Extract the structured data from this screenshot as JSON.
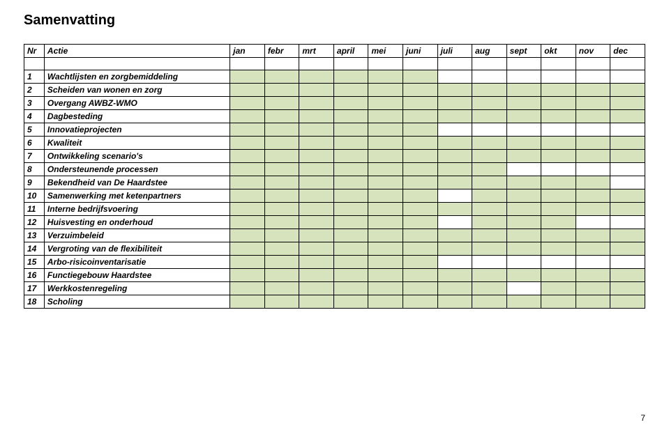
{
  "title": "Samenvatting",
  "page_number": "7",
  "colors": {
    "fill": "#d6e3bc",
    "empty": "#ffffff",
    "border": "#000000"
  },
  "columns": {
    "nr": "Nr",
    "actie": "Actie",
    "months": [
      "jan",
      "febr",
      "mrt",
      "april",
      "mei",
      "juni",
      "juli",
      "aug",
      "sept",
      "okt",
      "nov",
      "dec"
    ]
  },
  "rows": [
    {
      "nr": "1",
      "actie": "Wachtlijsten en zorgbemiddeling",
      "fill": [
        1,
        1,
        1,
        1,
        1,
        1,
        0,
        0,
        0,
        0,
        0,
        0
      ]
    },
    {
      "nr": "2",
      "actie": "Scheiden van wonen en zorg",
      "fill": [
        1,
        1,
        1,
        1,
        1,
        1,
        1,
        1,
        1,
        1,
        1,
        1
      ]
    },
    {
      "nr": "3",
      "actie": "Overgang AWBZ-WMO",
      "fill": [
        1,
        1,
        1,
        1,
        1,
        1,
        1,
        1,
        1,
        1,
        1,
        1
      ]
    },
    {
      "nr": "4",
      "actie": "Dagbesteding",
      "fill": [
        1,
        1,
        1,
        1,
        1,
        1,
        1,
        1,
        1,
        1,
        1,
        1
      ]
    },
    {
      "nr": "5",
      "actie": "Innovatieprojecten",
      "fill": [
        1,
        1,
        1,
        1,
        1,
        1,
        0,
        0,
        0,
        0,
        0,
        0
      ]
    },
    {
      "nr": "6",
      "actie": "Kwaliteit",
      "fill": [
        1,
        1,
        1,
        1,
        1,
        1,
        1,
        1,
        1,
        1,
        1,
        1
      ]
    },
    {
      "nr": "7",
      "actie": "Ontwikkeling scenario's",
      "fill": [
        1,
        1,
        1,
        1,
        1,
        1,
        1,
        1,
        1,
        1,
        1,
        1
      ]
    },
    {
      "nr": "8",
      "actie": "Ondersteunende processen",
      "fill": [
        1,
        1,
        1,
        1,
        1,
        1,
        1,
        1,
        0,
        0,
        0,
        0
      ]
    },
    {
      "nr": "9",
      "actie": "Bekendheid van De Haardstee",
      "fill": [
        1,
        1,
        1,
        1,
        1,
        1,
        1,
        1,
        1,
        1,
        1,
        0
      ]
    },
    {
      "nr": "10",
      "actie": "Samenwerking met ketenpartners",
      "fill": [
        1,
        1,
        1,
        1,
        1,
        1,
        0,
        1,
        1,
        1,
        1,
        1
      ]
    },
    {
      "nr": "11",
      "actie": "Interne bedrijfsvoering",
      "fill": [
        1,
        1,
        1,
        1,
        1,
        1,
        1,
        1,
        1,
        1,
        1,
        1
      ]
    },
    {
      "nr": "12",
      "actie": "Huisvesting en onderhoud",
      "fill": [
        1,
        1,
        1,
        1,
        1,
        1,
        0,
        1,
        1,
        1,
        0,
        0
      ]
    },
    {
      "nr": "13",
      "actie": "Verzuimbeleid",
      "fill": [
        1,
        1,
        1,
        1,
        1,
        1,
        1,
        1,
        1,
        1,
        1,
        1
      ]
    },
    {
      "nr": "14",
      "actie": "Vergroting van de flexibiliteit",
      "fill": [
        1,
        1,
        1,
        1,
        1,
        1,
        1,
        1,
        1,
        1,
        1,
        1
      ]
    },
    {
      "nr": "15",
      "actie": "Arbo-risicoinventarisatie",
      "fill": [
        1,
        1,
        1,
        1,
        1,
        1,
        0,
        0,
        0,
        0,
        0,
        0
      ]
    },
    {
      "nr": "16",
      "actie": "Functiegebouw Haardstee",
      "fill": [
        1,
        1,
        1,
        1,
        1,
        1,
        1,
        1,
        1,
        1,
        1,
        1
      ]
    },
    {
      "nr": "17",
      "actie": "Werkkostenregeling",
      "fill": [
        1,
        1,
        1,
        1,
        1,
        1,
        1,
        1,
        0,
        1,
        1,
        1
      ]
    },
    {
      "nr": "18",
      "actie": "Scholing",
      "fill": [
        1,
        1,
        1,
        1,
        1,
        1,
        1,
        1,
        1,
        1,
        1,
        1
      ]
    }
  ]
}
